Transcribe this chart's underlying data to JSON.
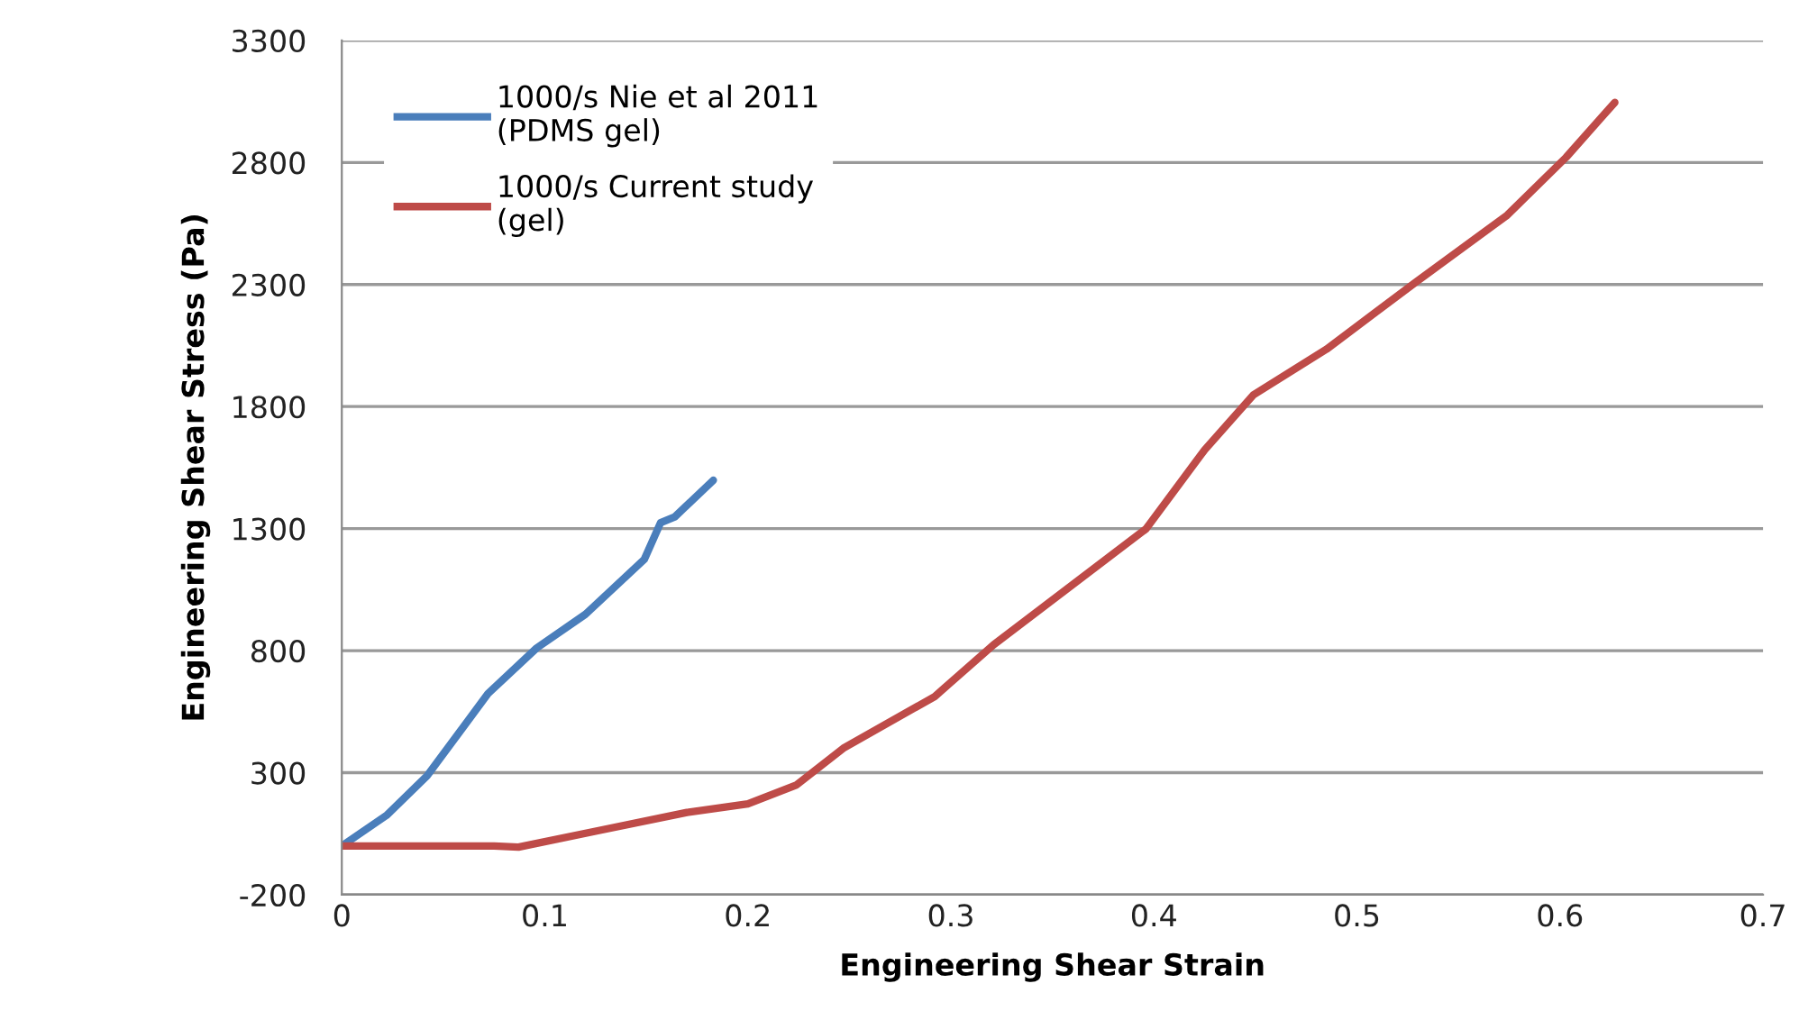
{
  "chart_data": {
    "type": "line",
    "xlabel": "Engineering Shear Strain",
    "ylabel": "Engineering Shear Stress (Pa)",
    "xlim": [
      0,
      0.7
    ],
    "xticks": [
      0,
      0.1,
      0.2,
      0.3,
      0.4,
      0.5,
      0.6,
      0.7
    ],
    "ylim": [
      -200,
      3300
    ],
    "yticks": [
      -200,
      300,
      800,
      1300,
      1800,
      2300,
      2800,
      3300
    ],
    "grid": "y",
    "legend": "top left",
    "marker": "none",
    "line_style": "solid",
    "series": [
      {
        "name": "1000/s Nie et al 2011\n(PDMS gel)",
        "color": "#4a7ebb",
        "x": [
          0,
          0.022,
          0.042,
          0.072,
          0.096,
          0.12,
          0.149,
          0.157,
          0.164,
          0.183
        ],
        "values": [
          0,
          125,
          287,
          624,
          811,
          949,
          1174,
          1324,
          1348,
          1498
        ]
      },
      {
        "name": "1000/s Current study\n(gel)",
        "color": "#be4b48",
        "x": [
          0,
          0.075,
          0.087,
          0.126,
          0.17,
          0.2,
          0.224,
          0.247,
          0.292,
          0.321,
          0.396,
          0.425,
          0.449,
          0.485,
          0.529,
          0.574,
          0.603,
          0.627
        ],
        "values": [
          0,
          0,
          -5,
          62,
          137,
          172,
          250,
          400,
          612,
          824,
          1298,
          1623,
          1848,
          2035,
          2310,
          2584,
          2821,
          3046
        ]
      }
    ]
  }
}
